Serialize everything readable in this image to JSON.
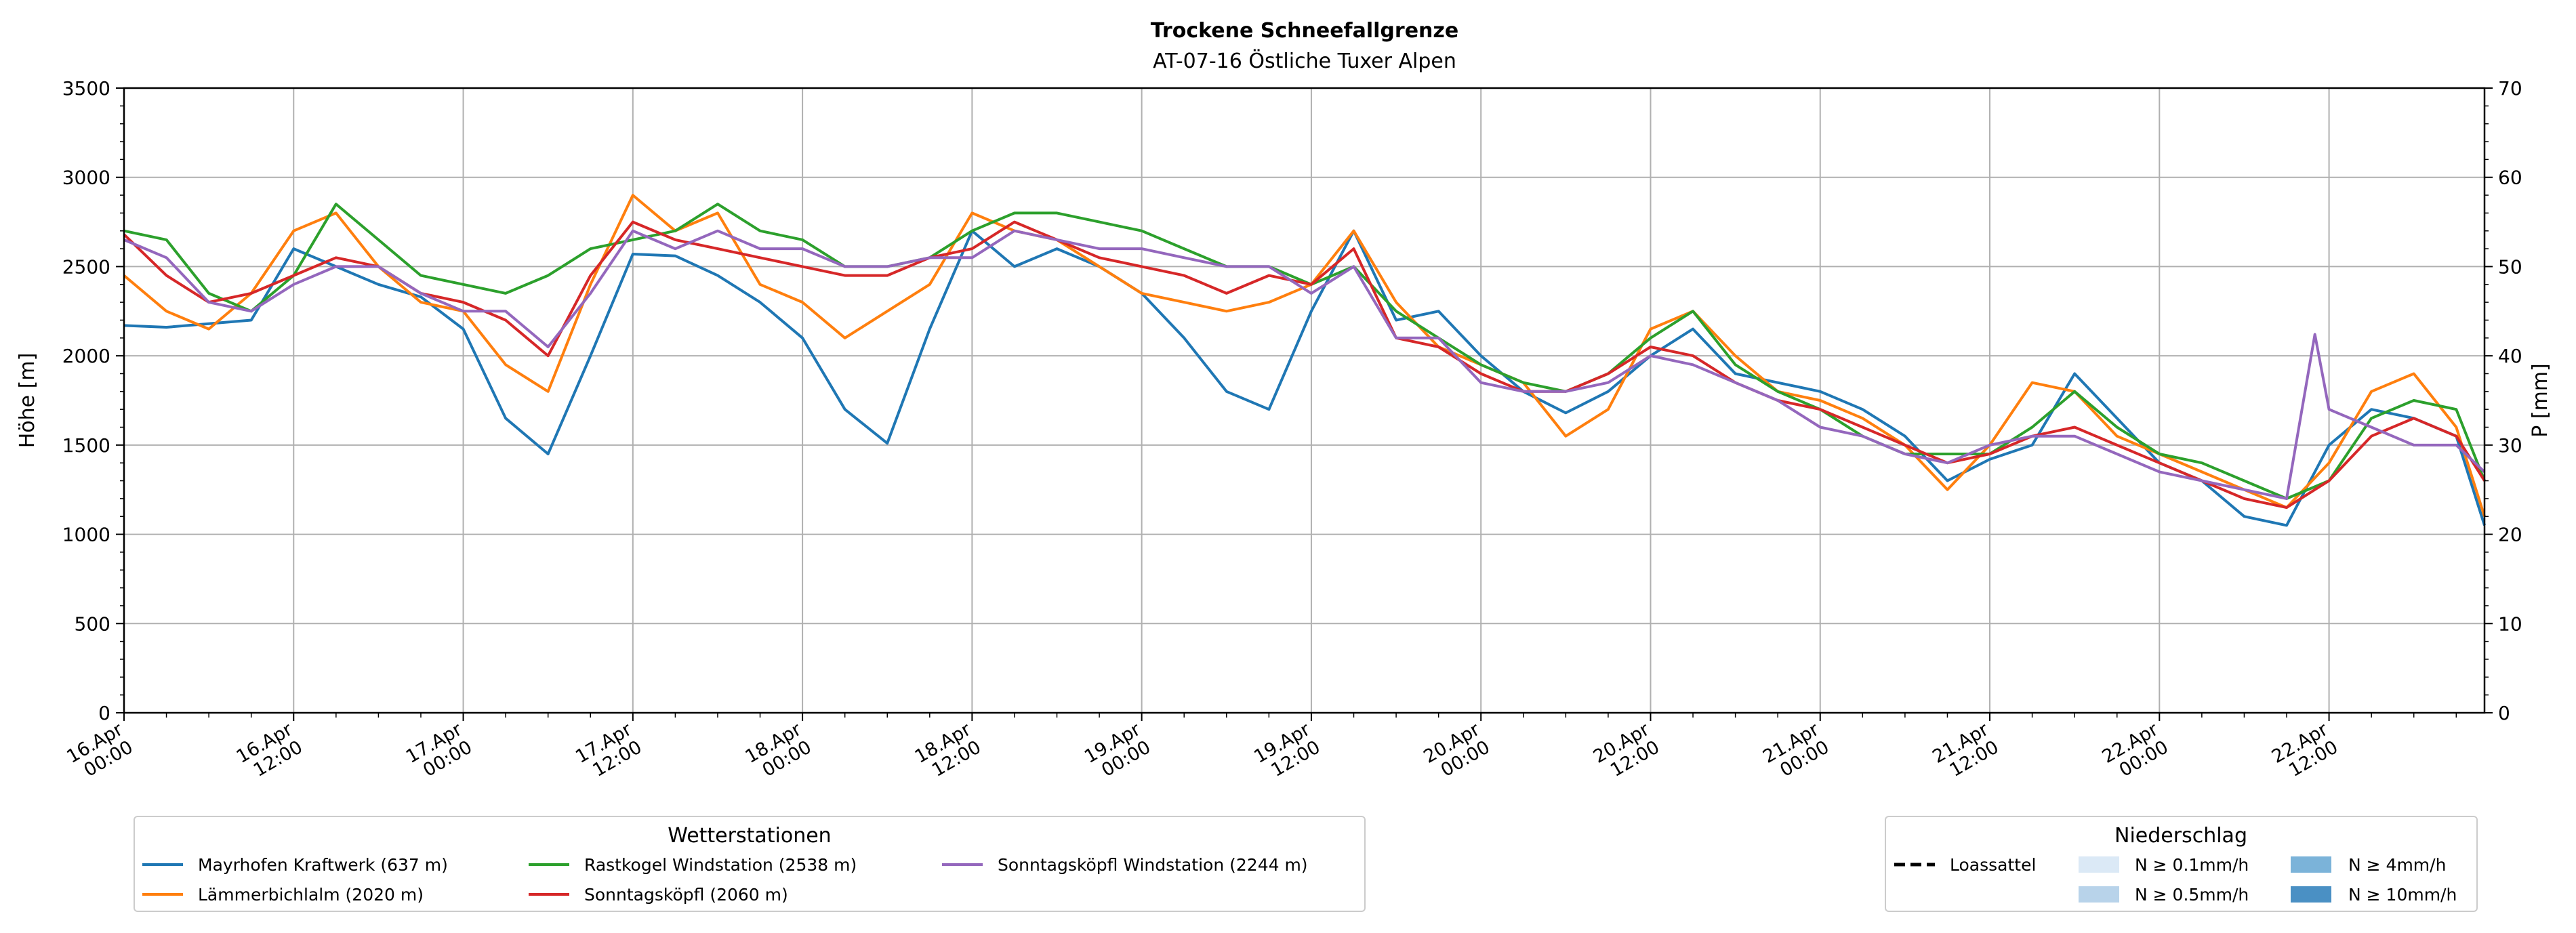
{
  "chart_data": {
    "type": "line",
    "title": "Trockene Schneefallgrenze",
    "subtitle": "AT-07-16 Östliche Tuxer Alpen",
    "ylabel": "Höhe [m]",
    "y2label": "P [mm]",
    "ylim": [
      0,
      3500
    ],
    "y2lim": [
      0,
      70
    ],
    "yticks": [
      0,
      500,
      1000,
      1500,
      2000,
      2500,
      3000,
      3500
    ],
    "y2ticks": [
      0,
      10,
      20,
      30,
      40,
      50,
      60,
      70
    ],
    "xlim": [
      0,
      167
    ],
    "x_major_step": 12,
    "x_minor_step": 3,
    "xticks": [
      {
        "line1": "16.Apr",
        "line2": "00:00"
      },
      {
        "line1": "16.Apr",
        "line2": "12:00"
      },
      {
        "line1": "17.Apr",
        "line2": "00:00"
      },
      {
        "line1": "17.Apr",
        "line2": "12:00"
      },
      {
        "line1": "18.Apr",
        "line2": "00:00"
      },
      {
        "line1": "18.Apr",
        "line2": "12:00"
      },
      {
        "line1": "19.Apr",
        "line2": "00:00"
      },
      {
        "line1": "19.Apr",
        "line2": "12:00"
      },
      {
        "line1": "20.Apr",
        "line2": "00:00"
      },
      {
        "line1": "20.Apr",
        "line2": "12:00"
      },
      {
        "line1": "21.Apr",
        "line2": "00:00"
      },
      {
        "line1": "21.Apr",
        "line2": "12:00"
      },
      {
        "line1": "22.Apr",
        "line2": "00:00"
      },
      {
        "line1": "22.Apr",
        "line2": "12:00"
      }
    ],
    "grid": true,
    "series": [
      {
        "name": "Mayrhofen Kraftwerk (637 m)",
        "color": "#1f77b4",
        "points": [
          [
            0,
            2170
          ],
          [
            3,
            2160
          ],
          [
            6,
            2180
          ],
          [
            9,
            2200
          ],
          [
            12,
            2600
          ],
          [
            15,
            2500
          ],
          [
            18,
            2400
          ],
          [
            21,
            2330
          ],
          [
            24,
            2150
          ],
          [
            27,
            1650
          ],
          [
            30,
            1450
          ],
          [
            33,
            2000
          ],
          [
            36,
            2570
          ],
          [
            39,
            2560
          ],
          [
            42,
            2450
          ],
          [
            45,
            2300
          ],
          [
            48,
            2100
          ],
          [
            51,
            1700
          ],
          [
            54,
            1510
          ],
          [
            57,
            2150
          ],
          [
            60,
            2700
          ],
          [
            63,
            2500
          ],
          [
            66,
            2600
          ],
          [
            69,
            2500
          ],
          [
            72,
            2350
          ],
          [
            75,
            2100
          ],
          [
            78,
            1800
          ],
          [
            81,
            1700
          ],
          [
            84,
            2250
          ],
          [
            87,
            2700
          ],
          [
            90,
            2200
          ],
          [
            93,
            2250
          ],
          [
            96,
            2000
          ],
          [
            99,
            1800
          ],
          [
            102,
            1680
          ],
          [
            105,
            1800
          ],
          [
            108,
            2000
          ],
          [
            111,
            2150
          ],
          [
            114,
            1900
          ],
          [
            117,
            1850
          ],
          [
            120,
            1800
          ],
          [
            123,
            1700
          ],
          [
            126,
            1550
          ],
          [
            129,
            1300
          ],
          [
            132,
            1420
          ],
          [
            135,
            1500
          ],
          [
            138,
            1900
          ],
          [
            141,
            1650
          ],
          [
            144,
            1400
          ],
          [
            147,
            1300
          ],
          [
            150,
            1100
          ],
          [
            153,
            1050
          ],
          [
            156,
            1500
          ],
          [
            159,
            1700
          ],
          [
            162,
            1650
          ],
          [
            165,
            1550
          ],
          [
            167,
            1050
          ]
        ]
      },
      {
        "name": "Lämmerbichlalm (2020 m)",
        "color": "#ff7f0e",
        "points": [
          [
            0,
            2450
          ],
          [
            3,
            2250
          ],
          [
            6,
            2150
          ],
          [
            9,
            2350
          ],
          [
            12,
            2700
          ],
          [
            15,
            2800
          ],
          [
            18,
            2500
          ],
          [
            21,
            2300
          ],
          [
            24,
            2250
          ],
          [
            27,
            1950
          ],
          [
            30,
            1800
          ],
          [
            33,
            2400
          ],
          [
            36,
            2900
          ],
          [
            39,
            2700
          ],
          [
            42,
            2800
          ],
          [
            45,
            2400
          ],
          [
            48,
            2300
          ],
          [
            51,
            2100
          ],
          [
            54,
            2250
          ],
          [
            57,
            2400
          ],
          [
            60,
            2800
          ],
          [
            63,
            2700
          ],
          [
            66,
            2650
          ],
          [
            69,
            2500
          ],
          [
            72,
            2350
          ],
          [
            75,
            2300
          ],
          [
            78,
            2250
          ],
          [
            81,
            2300
          ],
          [
            84,
            2400
          ],
          [
            87,
            2700
          ],
          [
            90,
            2300
          ],
          [
            93,
            2050
          ],
          [
            96,
            1950
          ],
          [
            99,
            1850
          ],
          [
            102,
            1550
          ],
          [
            105,
            1700
          ],
          [
            108,
            2150
          ],
          [
            111,
            2250
          ],
          [
            114,
            2000
          ],
          [
            117,
            1800
          ],
          [
            120,
            1750
          ],
          [
            123,
            1650
          ],
          [
            126,
            1500
          ],
          [
            129,
            1250
          ],
          [
            132,
            1500
          ],
          [
            135,
            1850
          ],
          [
            138,
            1800
          ],
          [
            141,
            1550
          ],
          [
            144,
            1450
          ],
          [
            147,
            1350
          ],
          [
            150,
            1250
          ],
          [
            153,
            1150
          ],
          [
            156,
            1400
          ],
          [
            159,
            1800
          ],
          [
            162,
            1900
          ],
          [
            165,
            1600
          ],
          [
            167,
            1100
          ]
        ]
      },
      {
        "name": "Rastkogel Windstation (2538 m)",
        "color": "#2ca02c",
        "points": [
          [
            0,
            2700
          ],
          [
            3,
            2650
          ],
          [
            6,
            2350
          ],
          [
            9,
            2250
          ],
          [
            12,
            2450
          ],
          [
            15,
            2850
          ],
          [
            18,
            2650
          ],
          [
            21,
            2450
          ],
          [
            24,
            2400
          ],
          [
            27,
            2350
          ],
          [
            30,
            2450
          ],
          [
            33,
            2600
          ],
          [
            36,
            2650
          ],
          [
            39,
            2700
          ],
          [
            42,
            2850
          ],
          [
            45,
            2700
          ],
          [
            48,
            2650
          ],
          [
            51,
            2500
          ],
          [
            54,
            2500
          ],
          [
            57,
            2550
          ],
          [
            60,
            2700
          ],
          [
            63,
            2800
          ],
          [
            66,
            2800
          ],
          [
            69,
            2750
          ],
          [
            72,
            2700
          ],
          [
            75,
            2600
          ],
          [
            78,
            2500
          ],
          [
            81,
            2500
          ],
          [
            84,
            2400
          ],
          [
            87,
            2500
          ],
          [
            90,
            2250
          ],
          [
            93,
            2100
          ],
          [
            96,
            1950
          ],
          [
            99,
            1850
          ],
          [
            102,
            1800
          ],
          [
            105,
            1900
          ],
          [
            108,
            2100
          ],
          [
            111,
            2250
          ],
          [
            114,
            1950
          ],
          [
            117,
            1800
          ],
          [
            120,
            1700
          ],
          [
            123,
            1550
          ],
          [
            126,
            1450
          ],
          [
            129,
            1450
          ],
          [
            132,
            1450
          ],
          [
            135,
            1600
          ],
          [
            138,
            1800
          ],
          [
            141,
            1600
          ],
          [
            144,
            1450
          ],
          [
            147,
            1400
          ],
          [
            150,
            1300
          ],
          [
            153,
            1200
          ],
          [
            156,
            1300
          ],
          [
            159,
            1650
          ],
          [
            162,
            1750
          ],
          [
            165,
            1700
          ],
          [
            167,
            1300
          ]
        ]
      },
      {
        "name": "Sonntagsköpfl (2060 m)",
        "color": "#d62728",
        "points": [
          [
            0,
            2680
          ],
          [
            3,
            2450
          ],
          [
            6,
            2300
          ],
          [
            9,
            2350
          ],
          [
            12,
            2450
          ],
          [
            15,
            2550
          ],
          [
            18,
            2500
          ],
          [
            21,
            2350
          ],
          [
            24,
            2300
          ],
          [
            27,
            2200
          ],
          [
            30,
            2000
          ],
          [
            33,
            2450
          ],
          [
            36,
            2750
          ],
          [
            39,
            2650
          ],
          [
            42,
            2600
          ],
          [
            45,
            2550
          ],
          [
            48,
            2500
          ],
          [
            51,
            2450
          ],
          [
            54,
            2450
          ],
          [
            57,
            2550
          ],
          [
            60,
            2600
          ],
          [
            63,
            2750
          ],
          [
            66,
            2650
          ],
          [
            69,
            2550
          ],
          [
            72,
            2500
          ],
          [
            75,
            2450
          ],
          [
            78,
            2350
          ],
          [
            81,
            2450
          ],
          [
            84,
            2400
          ],
          [
            87,
            2600
          ],
          [
            90,
            2100
          ],
          [
            93,
            2050
          ],
          [
            96,
            1900
          ],
          [
            99,
            1800
          ],
          [
            102,
            1800
          ],
          [
            105,
            1900
          ],
          [
            108,
            2050
          ],
          [
            111,
            2000
          ],
          [
            114,
            1850
          ],
          [
            117,
            1750
          ],
          [
            120,
            1700
          ],
          [
            123,
            1600
          ],
          [
            126,
            1500
          ],
          [
            129,
            1400
          ],
          [
            132,
            1450
          ],
          [
            135,
            1550
          ],
          [
            138,
            1600
          ],
          [
            141,
            1500
          ],
          [
            144,
            1400
          ],
          [
            147,
            1300
          ],
          [
            150,
            1200
          ],
          [
            153,
            1150
          ],
          [
            156,
            1300
          ],
          [
            159,
            1550
          ],
          [
            162,
            1650
          ],
          [
            165,
            1550
          ],
          [
            167,
            1300
          ]
        ]
      },
      {
        "name": "Sonntagsköpfl Windstation (2244 m)",
        "color": "#9467bd",
        "points": [
          [
            0,
            2650
          ],
          [
            3,
            2550
          ],
          [
            6,
            2300
          ],
          [
            9,
            2250
          ],
          [
            12,
            2400
          ],
          [
            15,
            2500
          ],
          [
            18,
            2500
          ],
          [
            21,
            2350
          ],
          [
            24,
            2250
          ],
          [
            27,
            2250
          ],
          [
            30,
            2050
          ],
          [
            33,
            2350
          ],
          [
            36,
            2700
          ],
          [
            39,
            2600
          ],
          [
            42,
            2700
          ],
          [
            45,
            2600
          ],
          [
            48,
            2600
          ],
          [
            51,
            2500
          ],
          [
            54,
            2500
          ],
          [
            57,
            2550
          ],
          [
            60,
            2550
          ],
          [
            63,
            2700
          ],
          [
            66,
            2650
          ],
          [
            69,
            2600
          ],
          [
            72,
            2600
          ],
          [
            75,
            2550
          ],
          [
            78,
            2500
          ],
          [
            81,
            2500
          ],
          [
            84,
            2350
          ],
          [
            87,
            2500
          ],
          [
            90,
            2100
          ],
          [
            93,
            2100
          ],
          [
            96,
            1850
          ],
          [
            99,
            1800
          ],
          [
            102,
            1800
          ],
          [
            105,
            1850
          ],
          [
            108,
            2000
          ],
          [
            111,
            1950
          ],
          [
            114,
            1850
          ],
          [
            117,
            1750
          ],
          [
            120,
            1600
          ],
          [
            123,
            1550
          ],
          [
            126,
            1450
          ],
          [
            129,
            1400
          ],
          [
            132,
            1500
          ],
          [
            135,
            1550
          ],
          [
            138,
            1550
          ],
          [
            141,
            1450
          ],
          [
            144,
            1350
          ],
          [
            147,
            1300
          ],
          [
            150,
            1250
          ],
          [
            153,
            1200
          ],
          [
            155,
            2120
          ],
          [
            156,
            1700
          ],
          [
            159,
            1600
          ],
          [
            162,
            1500
          ],
          [
            165,
            1500
          ],
          [
            167,
            1350
          ]
        ]
      }
    ]
  },
  "legend_stations": {
    "title": "Wetterstationen",
    "items": [
      "Mayrhofen Kraftwerk (637 m)",
      "Lämmerbichlalm (2020 m)",
      "Rastkogel Windstation (2538 m)",
      "Sonntagsköpfl (2060 m)",
      "Sonntagsköpfl Windstation (2244 m)"
    ]
  },
  "legend_precip": {
    "title": "Niederschlag",
    "line_label": "Loassattel",
    "items": [
      {
        "label": "N ≥ 0.1mm/h",
        "color": "#dbe9f6"
      },
      {
        "label": "N ≥ 0.5mm/h",
        "color": "#b8d3ea"
      },
      {
        "label": "N ≥ 4mm/h",
        "color": "#7bb3d9"
      },
      {
        "label": "N ≥ 10mm/h",
        "color": "#4a90c4"
      }
    ]
  }
}
